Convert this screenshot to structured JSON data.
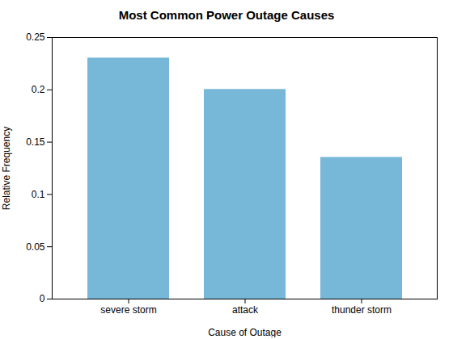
{
  "chart_data": {
    "type": "bar",
    "title": "Most Common Power Outage Causes",
    "xlabel": "Cause of Outage",
    "ylabel": "Relative Frequency",
    "categories": [
      "severe storm",
      "attack",
      "thunder storm"
    ],
    "values": [
      0.2304,
      0.2004,
      0.1354
    ],
    "color": "#77b7d8",
    "ylim": [
      0,
      0.25
    ],
    "yticks": [
      0,
      0.05,
      0.1,
      0.15,
      0.2,
      0.25
    ],
    "grid": false
  }
}
